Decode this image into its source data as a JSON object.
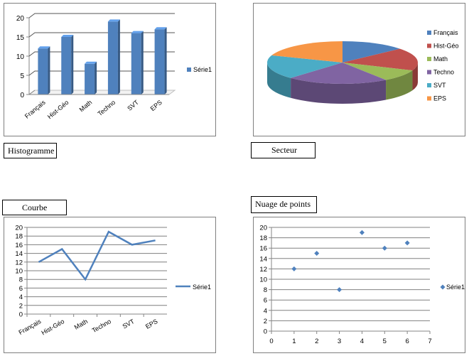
{
  "captions": {
    "histogram": "Histogramme",
    "pie": "Secteur",
    "line": "Courbe",
    "scatter": "Nuage de points"
  },
  "chart_data": [
    {
      "type": "bar",
      "categories": [
        "Français",
        "Hist-Géo",
        "Math",
        "Techno",
        "SVT",
        "EPS"
      ],
      "series": [
        {
          "name": "Série1",
          "values": [
            12,
            15,
            8,
            19,
            16,
            17
          ]
        }
      ],
      "ylim": [
        0,
        20
      ],
      "yticks": [
        0,
        5,
        10,
        15,
        20
      ],
      "grid": true,
      "legend": "right",
      "color": "#4f81bd"
    },
    {
      "type": "pie",
      "labels": [
        "Français",
        "Hist-Géo",
        "Math",
        "Techno",
        "SVT",
        "EPS"
      ],
      "values": [
        12,
        15,
        8,
        19,
        16,
        17
      ],
      "colors": [
        "#4f81bd",
        "#c0504d",
        "#9bbb59",
        "#8064a2",
        "#4bacc6",
        "#f79646"
      ],
      "legend": "right"
    },
    {
      "type": "line",
      "categories": [
        "Français",
        "Hist-Géo",
        "Math",
        "Techno",
        "SVT",
        "EPS"
      ],
      "series": [
        {
          "name": "Série1",
          "values": [
            12,
            15,
            8,
            19,
            16,
            17
          ]
        }
      ],
      "ylim": [
        0,
        20
      ],
      "yticks": [
        0,
        2,
        4,
        6,
        8,
        10,
        12,
        14,
        16,
        18,
        20
      ],
      "grid": true,
      "legend": "right",
      "color": "#4f81bd"
    },
    {
      "type": "scatter",
      "series": [
        {
          "name": "Série1",
          "x": [
            1,
            2,
            3,
            4,
            5,
            6
          ],
          "y": [
            12,
            15,
            8,
            19,
            16,
            17
          ]
        }
      ],
      "xlim": [
        0,
        7
      ],
      "ylim": [
        0,
        20
      ],
      "xticks": [
        0,
        1,
        2,
        3,
        4,
        5,
        6,
        7
      ],
      "yticks": [
        0,
        2,
        4,
        6,
        8,
        10,
        12,
        14,
        16,
        18,
        20
      ],
      "grid": true,
      "legend": "right",
      "color": "#4f81bd"
    }
  ]
}
